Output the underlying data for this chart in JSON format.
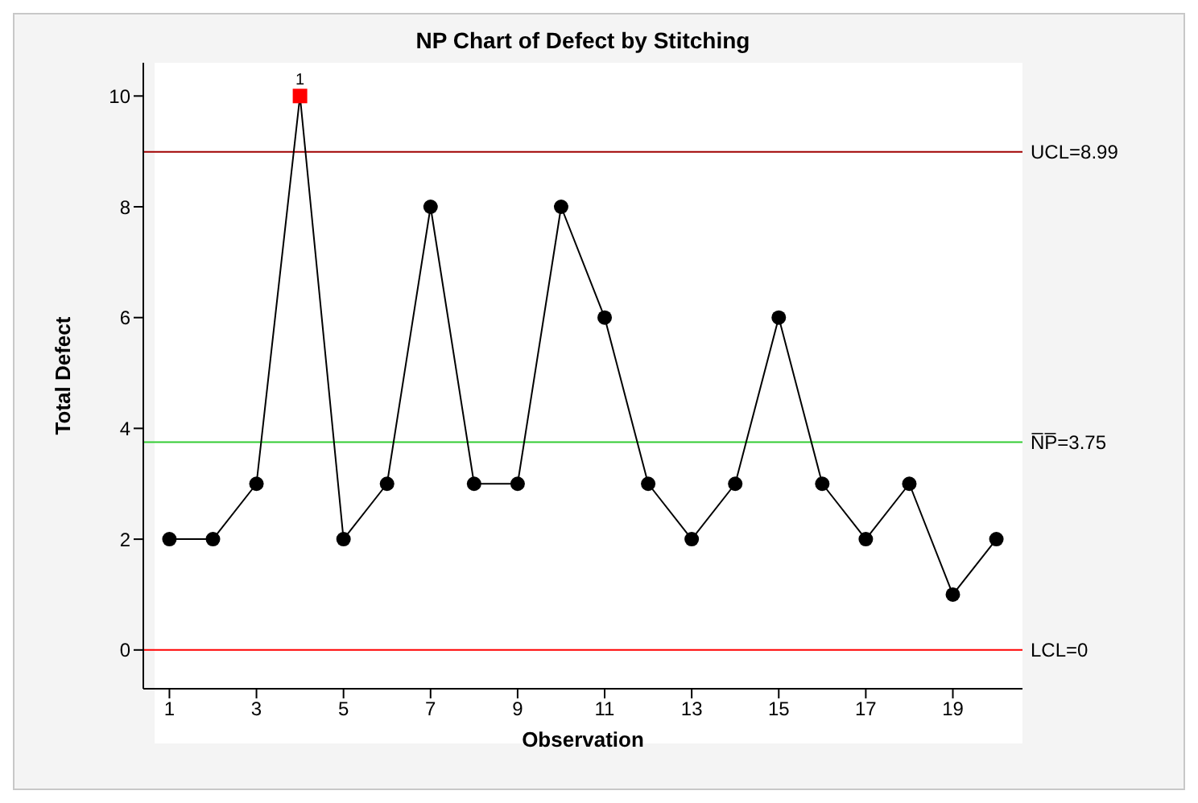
{
  "chart_data": {
    "type": "line",
    "title": "NP Chart of Defect by Stitching",
    "xlabel": "Observation",
    "ylabel": "Total Defect",
    "x": [
      1,
      2,
      3,
      4,
      5,
      6,
      7,
      8,
      9,
      10,
      11,
      12,
      13,
      14,
      15,
      16,
      17,
      18,
      19,
      20
    ],
    "series": [
      {
        "color": "#000000",
        "values": [
          2,
          2,
          3,
          10,
          2,
          3,
          8,
          3,
          3,
          8,
          6,
          3,
          2,
          3,
          6,
          3,
          2,
          3,
          1,
          2
        ],
        "colors": [
          "#000000",
          "#000000",
          "#000000",
          "#ff0000",
          "#000000",
          "#000000",
          "#000000",
          "#000000",
          "#000000",
          "#000000",
          "#000000",
          "#000000",
          "#000000",
          "#000000",
          "#000000",
          "#000000",
          "#000000",
          "#000000",
          "#000000",
          "#000000"
        ]
      }
    ],
    "xlim": [
      0.4,
      20.6
    ],
    "xticks": [
      1,
      3,
      5,
      7,
      9,
      11,
      13,
      15,
      17,
      19
    ],
    "ylim": [
      -0.7,
      10.6
    ],
    "yticks": [
      0,
      2,
      4,
      6,
      8,
      10
    ],
    "ref_lines": [
      {
        "axis": "y",
        "value": 8.99,
        "label": "UCL=8.99",
        "color": "#a00000"
      },
      {
        "axis": "y",
        "value": 3.75,
        "label": "N̅P̅=3.75",
        "color": "#33cc33"
      },
      {
        "axis": "y",
        "value": 0,
        "label": "LCL=0",
        "color": "#ff0000"
      }
    ],
    "annotations": [
      {
        "text": "1",
        "x": 4,
        "y": 10
      }
    ],
    "marker": "circle",
    "line_style": "solid",
    "grid": false,
    "legend": false
  }
}
